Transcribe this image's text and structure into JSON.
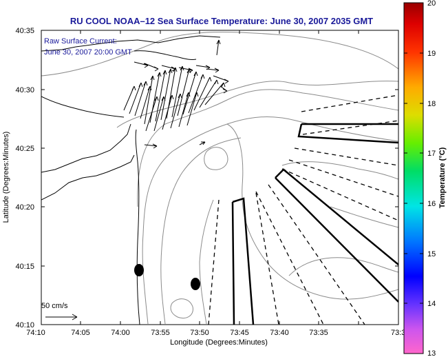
{
  "title": "RU COOL  NOAA–12  Sea Surface Temperature:  June 30, 2007 2035 GMT",
  "legend": {
    "line1": "Raw Surface Current:",
    "line2": "June 30, 2007 20:00 GMT"
  },
  "axes": {
    "xlabel": "Longitude (Degrees:Minutes)",
    "ylabel": "Latitude (Degrees:Minutes)",
    "xticks": [
      "74:10",
      "74:05",
      "74:00",
      "73:55",
      "73:50",
      "73:45",
      "73:40",
      "73:35",
      "73:3"
    ],
    "yticks": [
      "40:35",
      "40:30",
      "40:25",
      "40:20",
      "40:15",
      "40:10"
    ]
  },
  "colorbar": {
    "label": "Temperature (°C)",
    "ticks": [
      "20",
      "19",
      "18",
      "17",
      "16",
      "15",
      "14",
      "13"
    ]
  },
  "scale_arrow": {
    "label": "50 cm/s"
  },
  "colors": {
    "title": "#1a1a9a",
    "frame": "#000000",
    "contour": "#8a8a8a",
    "coast": "#000000"
  }
}
